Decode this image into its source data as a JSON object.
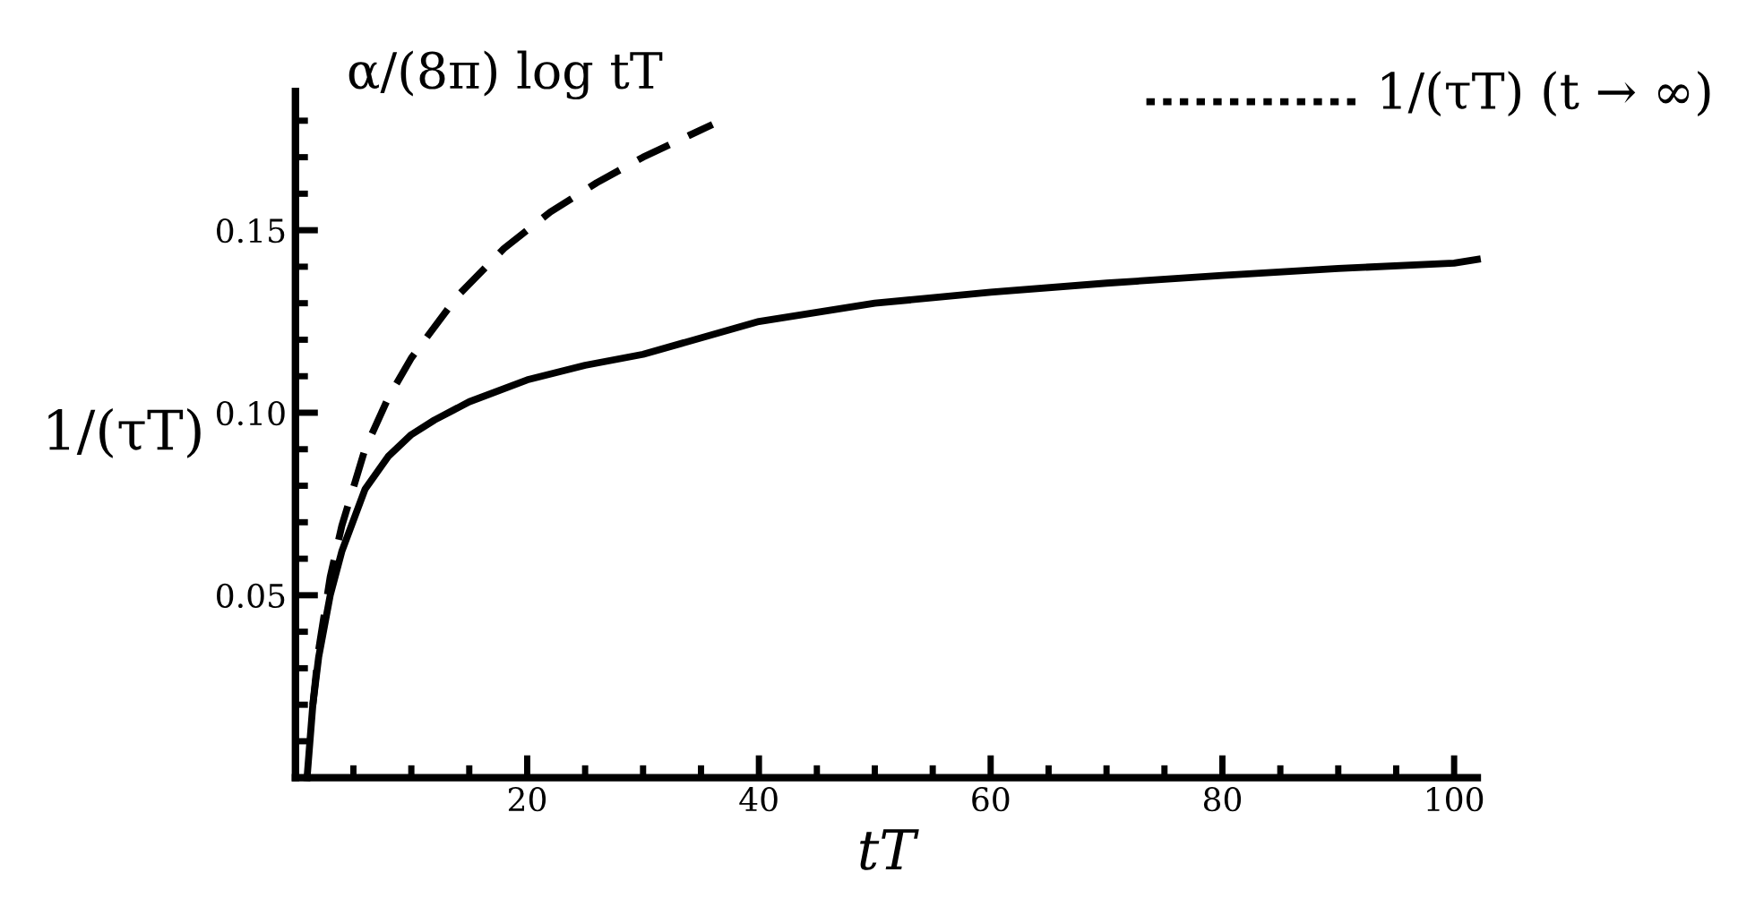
{
  "chart_data": {
    "type": "line",
    "xlabel": "tT",
    "ylabel": "1/(τT)",
    "xlim": [
      0,
      102
    ],
    "ylim": [
      0,
      0.188
    ],
    "xticks": [
      {
        "value": 5,
        "label": null
      },
      {
        "value": 10,
        "label": null
      },
      {
        "value": 15,
        "label": null
      },
      20,
      {
        "value": 25,
        "label": null
      },
      {
        "value": 30,
        "label": null
      },
      {
        "value": 35,
        "label": null
      },
      40,
      {
        "value": 45,
        "label": null
      },
      {
        "value": 50,
        "label": null
      },
      {
        "value": 55,
        "label": null
      },
      60,
      {
        "value": 65,
        "label": null
      },
      {
        "value": 70,
        "label": null
      },
      {
        "value": 75,
        "label": null
      },
      80,
      {
        "value": 85,
        "label": null
      },
      {
        "value": 90,
        "label": null
      },
      {
        "value": 95,
        "label": null
      },
      100
    ],
    "yticks": [
      {
        "value": 0.01,
        "label": null
      },
      {
        "value": 0.02,
        "label": null
      },
      {
        "value": 0.03,
        "label": null
      },
      {
        "value": 0.04,
        "label": null
      },
      {
        "value": 0.05,
        "label": "0.05"
      },
      {
        "value": 0.06,
        "label": null
      },
      {
        "value": 0.07,
        "label": null
      },
      {
        "value": 0.08,
        "label": null
      },
      {
        "value": 0.09,
        "label": null
      },
      {
        "value": 0.1,
        "label": "0.10"
      },
      {
        "value": 0.11,
        "label": null
      },
      {
        "value": 0.12,
        "label": null
      },
      {
        "value": 0.13,
        "label": null
      },
      {
        "value": 0.14,
        "label": null
      },
      {
        "value": 0.15,
        "label": "0.15"
      },
      {
        "value": 0.16,
        "label": null
      },
      {
        "value": 0.17,
        "label": null
      },
      {
        "value": 0.18,
        "label": null
      }
    ],
    "grid": false,
    "marker": "none",
    "series": [
      {
        "color": "#000000",
        "line_style": "solid",
        "x": [
          1,
          1.5,
          2,
          3,
          4,
          6,
          8,
          10,
          12,
          15,
          20,
          25,
          30,
          40,
          50,
          60,
          70,
          80,
          90,
          100,
          102
        ],
        "values": [
          0,
          0.02,
          0.033,
          0.05,
          0.062,
          0.079,
          0.088,
          0.094,
          0.098,
          0.103,
          0.109,
          0.113,
          0.116,
          0.125,
          0.13,
          0.133,
          0.1355,
          0.1376,
          0.1395,
          0.141,
          0.142
        ]
      },
      {
        "color": "#000000",
        "line_style": "dashed",
        "x": [
          1.5,
          2,
          3,
          4,
          6,
          8,
          10,
          14,
          18,
          22,
          26,
          30,
          34,
          36
        ],
        "values": [
          0.02,
          0.035,
          0.055,
          0.069,
          0.09,
          0.104,
          0.115,
          0.132,
          0.145,
          0.155,
          0.163,
          0.17,
          0.176,
          0.179
        ]
      }
    ],
    "annotations": [
      {
        "text": "α/(8π) log tT",
        "x": 36,
        "y": 0.179
      },
      "1/(τT) (t → ∞)"
    ]
  }
}
